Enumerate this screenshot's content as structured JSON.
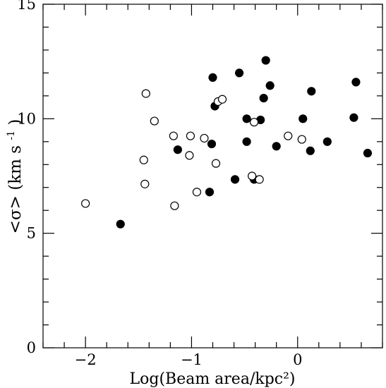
{
  "chart_data": {
    "type": "scatter",
    "title": "",
    "xlabel": "Log(Beam area/kpc²)",
    "ylabel": {
      "symbol": "<σ>",
      "units_prefix": "(km s",
      "units_superscript": "-1",
      "units_suffix": ")"
    },
    "xlim": [
      -2.4,
      0.8
    ],
    "ylim": [
      0,
      15
    ],
    "x_ticks": [
      {
        "value": -2,
        "label": "−2"
      },
      {
        "value": -1,
        "label": "−1"
      },
      {
        "value": 0,
        "label": "0"
      }
    ],
    "y_ticks": [
      {
        "value": 0,
        "label": "0"
      },
      {
        "value": 5,
        "label": "5"
      },
      {
        "value": 10,
        "label": "10"
      },
      {
        "value": 15,
        "label": "15"
      }
    ],
    "x_major_step": 1,
    "x_minor_step": 0.2,
    "y_major_step": 5,
    "y_minor_step": 1,
    "grid": false,
    "legend": "none",
    "colors": {
      "axis": "#000000",
      "filled_marker": "#000000",
      "open_marker_fill": "#ffffff"
    },
    "series": [
      {
        "marker": "filled-circle",
        "points": [
          [
            -1.67,
            5.4
          ],
          [
            -1.13,
            8.65
          ],
          [
            -0.83,
            6.8
          ],
          [
            -0.81,
            8.9
          ],
          [
            -0.8,
            11.8
          ],
          [
            -0.78,
            10.55
          ],
          [
            -0.59,
            7.35
          ],
          [
            -0.55,
            12.0
          ],
          [
            -0.48,
            10.0
          ],
          [
            -0.48,
            9.0
          ],
          [
            -0.41,
            7.35
          ],
          [
            -0.35,
            9.95
          ],
          [
            -0.32,
            10.9
          ],
          [
            -0.3,
            12.55
          ],
          [
            -0.26,
            11.45
          ],
          [
            -0.2,
            8.8
          ],
          [
            0.05,
            10.0
          ],
          [
            0.12,
            8.6
          ],
          [
            0.13,
            11.2
          ],
          [
            0.28,
            9.0
          ],
          [
            0.53,
            10.05
          ],
          [
            0.55,
            11.6
          ],
          [
            0.66,
            8.5
          ]
        ]
      },
      {
        "marker": "open-circle",
        "points": [
          [
            -2.0,
            6.3
          ],
          [
            -1.45,
            8.2
          ],
          [
            -1.44,
            7.15
          ],
          [
            -1.43,
            11.1
          ],
          [
            -1.35,
            9.9
          ],
          [
            -1.17,
            9.25
          ],
          [
            -1.16,
            6.2
          ],
          [
            -1.02,
            8.4
          ],
          [
            -1.01,
            9.25
          ],
          [
            -0.95,
            6.8
          ],
          [
            -0.88,
            9.15
          ],
          [
            -0.77,
            8.05
          ],
          [
            -0.75,
            10.75
          ],
          [
            -0.71,
            10.85
          ],
          [
            -0.43,
            7.5
          ],
          [
            -0.41,
            9.85
          ],
          [
            -0.36,
            7.35
          ],
          [
            -0.09,
            9.25
          ],
          [
            0.04,
            9.1
          ]
        ]
      }
    ]
  }
}
